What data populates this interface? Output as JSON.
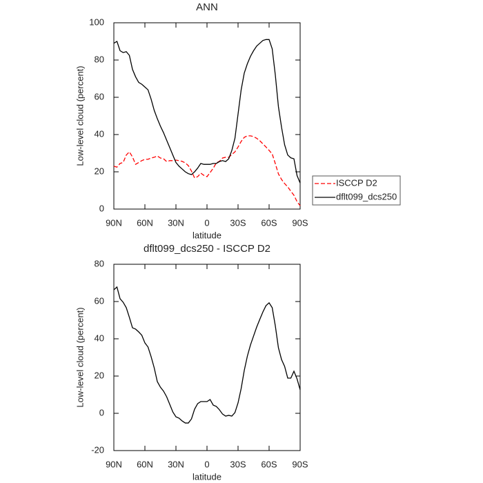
{
  "chart_data": [
    {
      "type": "line",
      "title": "ANN",
      "xlabel": "latitude",
      "ylabel": "Low-level cloud (percent)",
      "x": [
        90,
        87,
        84,
        81,
        78,
        75,
        72,
        69,
        66,
        63,
        60,
        57,
        54,
        51,
        48,
        45,
        42,
        39,
        36,
        33,
        30,
        27,
        24,
        21,
        18,
        15,
        12,
        9,
        6,
        3,
        0,
        -3,
        -6,
        -9,
        -12,
        -15,
        -18,
        -21,
        -24,
        -27,
        -30,
        -33,
        -36,
        -39,
        -42,
        -45,
        -48,
        -51,
        -54,
        -57,
        -60,
        -63,
        -66,
        -69,
        -72,
        -75,
        -78,
        -81,
        -84,
        -87,
        -90
      ],
      "series": [
        {
          "name": "ISCCP D2",
          "color": "#ff0000",
          "linestyle": "dashed",
          "values": [
            23,
            22.5,
            24.5,
            25,
            29,
            30.7,
            28,
            24,
            25,
            26,
            26.7,
            26.7,
            27.4,
            27.8,
            28.5,
            27.4,
            27,
            25.5,
            26,
            26,
            26.3,
            26,
            25.6,
            24.8,
            23.3,
            20.4,
            16.7,
            17.4,
            19.3,
            18.1,
            17.4,
            19.6,
            21.9,
            24.8,
            25.6,
            27.4,
            27.8,
            27.8,
            29.3,
            30.7,
            33.3,
            36.3,
            38.5,
            39.3,
            39.3,
            38.9,
            38,
            36.7,
            35,
            33.3,
            31.5,
            29.6,
            24.4,
            18.9,
            15.9,
            13.7,
            11.9,
            9.6,
            7.4,
            4,
            1.8
          ]
        },
        {
          "name": "dflt099_dcs250",
          "color": "#000000",
          "linestyle": "solid",
          "values": [
            89,
            90,
            85,
            84,
            84.5,
            82.5,
            75,
            71,
            68,
            67,
            65.5,
            64,
            59,
            53,
            48.5,
            44.5,
            41,
            37,
            33,
            29,
            25,
            23,
            21.5,
            20,
            19,
            18.5,
            20,
            22,
            24.5,
            24,
            24,
            24,
            24.5,
            24.5,
            25.5,
            26,
            25.5,
            27,
            31.5,
            38,
            51,
            64,
            73,
            78,
            82,
            85,
            87.5,
            89,
            90.5,
            91,
            91,
            86,
            72,
            55,
            44,
            34.5,
            29,
            27.5,
            27,
            18,
            14
          ]
        }
      ],
      "xlim": [
        90,
        -90
      ],
      "xticks": [
        {
          "value": 90,
          "label": "90N"
        },
        {
          "value": 60,
          "label": "60N"
        },
        {
          "value": 30,
          "label": "30N"
        },
        0,
        {
          "value": -30,
          "label": "30S"
        },
        {
          "value": -60,
          "label": "60S"
        },
        {
          "value": -90,
          "label": "90S"
        }
      ],
      "ylim": [
        0,
        100
      ],
      "yticks": [
        0,
        20,
        40,
        60,
        80,
        100
      ],
      "legend": "right"
    },
    {
      "type": "line",
      "title": "dflt099_dcs250 - ISCCP D2",
      "xlabel": "latitude",
      "ylabel": "Low-level cloud (percent)",
      "x": [
        90,
        87,
        84,
        81,
        78,
        75,
        72,
        69,
        66,
        63,
        60,
        57,
        54,
        51,
        48,
        45,
        42,
        39,
        36,
        33,
        30,
        27,
        24,
        21,
        18,
        15,
        12,
        9,
        6,
        3,
        0,
        -3,
        -6,
        -9,
        -12,
        -15,
        -18,
        -21,
        -24,
        -27,
        -30,
        -33,
        -36,
        -39,
        -42,
        -45,
        -48,
        -51,
        -54,
        -57,
        -60,
        -63,
        -66,
        -69,
        -72,
        -75,
        -78,
        -81,
        -84,
        -87,
        -90
      ],
      "series": [
        {
          "color": "#000000",
          "linestyle": "solid",
          "values": [
            66.3,
            67.8,
            61.5,
            59.6,
            56.7,
            51.5,
            45.9,
            45.2,
            43.7,
            41.9,
            37.8,
            35.6,
            30.4,
            24.4,
            17,
            14,
            11.9,
            8.9,
            4.8,
            0.7,
            -1.9,
            -2.6,
            -4.1,
            -5.2,
            -5.2,
            -3,
            2.2,
            5.2,
            6.3,
            6.3,
            6.3,
            7.4,
            4.4,
            3.7,
            1.9,
            -0.4,
            -1.5,
            -1.1,
            -1.5,
            0.4,
            5.6,
            13.3,
            23,
            30.7,
            36.7,
            41.5,
            46.3,
            50.4,
            54.4,
            57.8,
            59.3,
            56.7,
            47,
            35.2,
            28.9,
            25.2,
            18.9,
            18.9,
            22.6,
            18.5,
            12.6
          ]
        }
      ],
      "xlim": [
        90,
        -90
      ],
      "xticks": [
        {
          "value": 90,
          "label": "90N"
        },
        {
          "value": 60,
          "label": "60N"
        },
        {
          "value": 30,
          "label": "30N"
        },
        0,
        {
          "value": -30,
          "label": "30S"
        },
        {
          "value": -60,
          "label": "60S"
        },
        {
          "value": -90,
          "label": "90S"
        }
      ],
      "ylim": [
        -20,
        80
      ],
      "yticks": [
        -20,
        0,
        20,
        40,
        60,
        80
      ]
    }
  ]
}
